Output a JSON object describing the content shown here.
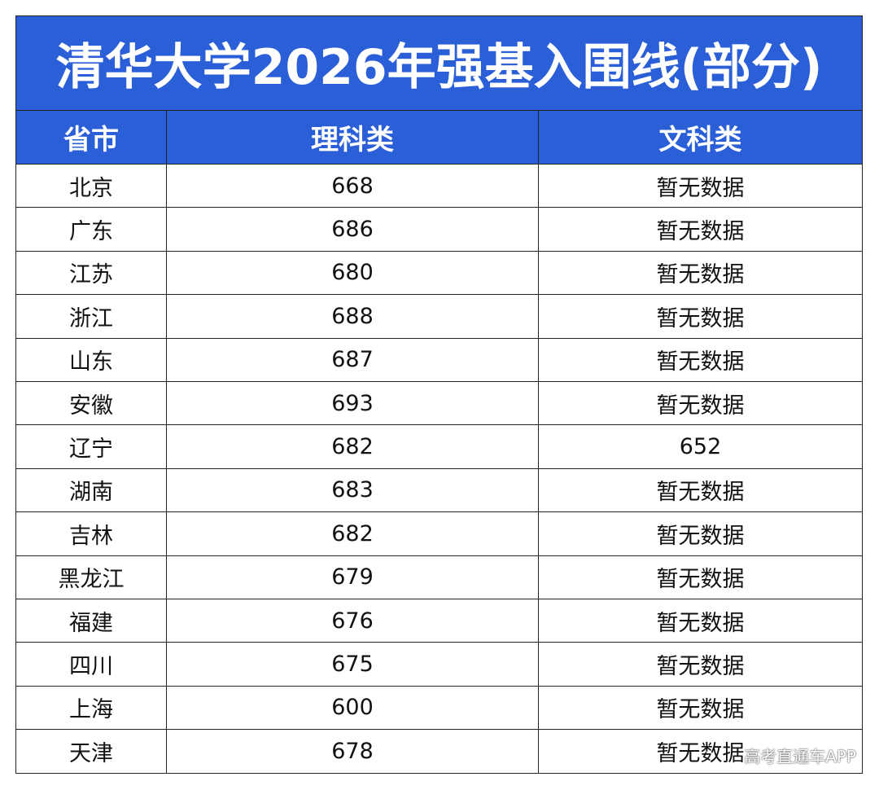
{
  "table": {
    "title": "清华大学2026年强基入围线(部分)",
    "headers": [
      "省市",
      "理科类",
      "文科类"
    ],
    "rows": [
      [
        "北京",
        "668",
        "暂无数据"
      ],
      [
        "广东",
        "686",
        "暂无数据"
      ],
      [
        "江苏",
        "680",
        "暂无数据"
      ],
      [
        "浙江",
        "688",
        "暂无数据"
      ],
      [
        "山东",
        "687",
        "暂无数据"
      ],
      [
        "安徽",
        "693",
        "暂无数据"
      ],
      [
        "辽宁",
        "682",
        "652"
      ],
      [
        "湖南",
        "683",
        "暂无数据"
      ],
      [
        "吉林",
        "682",
        "暂无数据"
      ],
      [
        "黑龙江",
        "679",
        "暂无数据"
      ],
      [
        "福建",
        "676",
        "暂无数据"
      ],
      [
        "四川",
        "675",
        "暂无数据"
      ],
      [
        "上海",
        "600",
        "暂无数据"
      ],
      [
        "天津",
        "678",
        "暂无数据"
      ]
    ]
  },
  "watermark": "高考直通车APP"
}
